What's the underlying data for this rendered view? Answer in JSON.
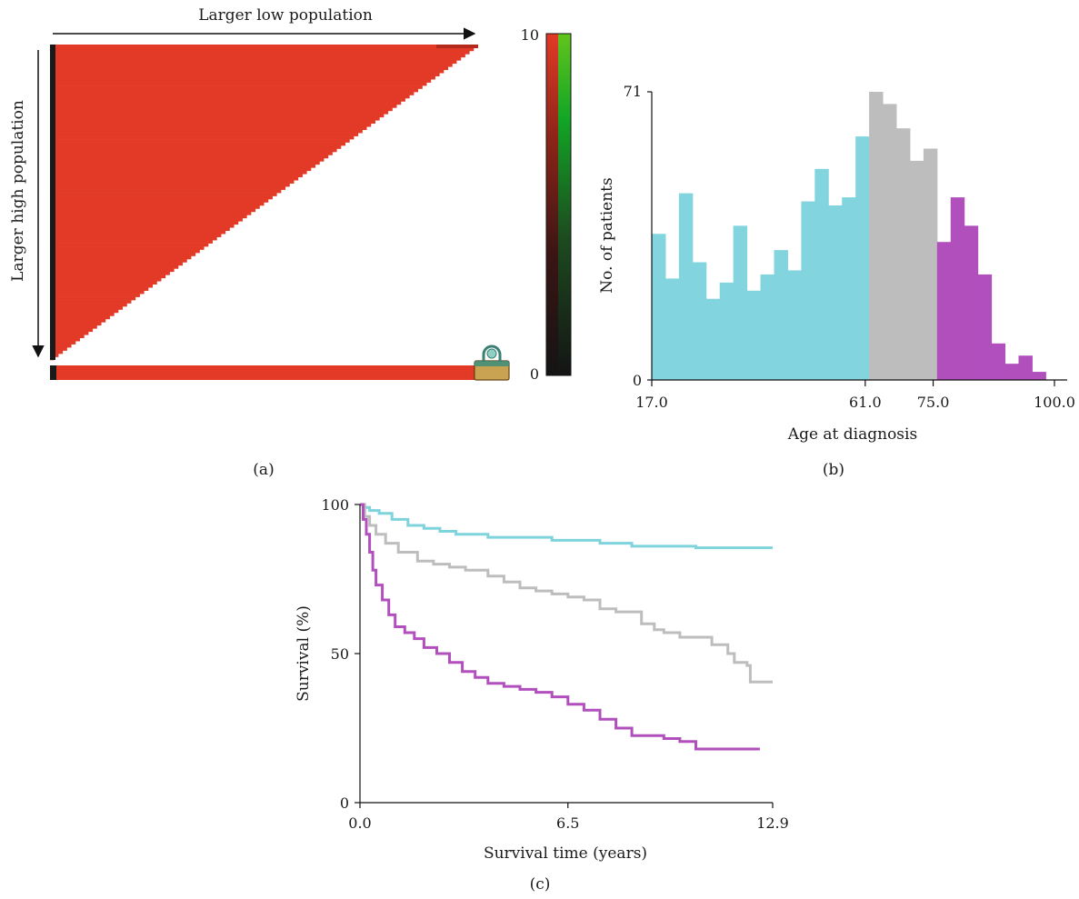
{
  "chart_data": [
    {
      "panel": "(a)",
      "type": "heatmap",
      "xlabel": "Larger low population",
      "ylabel": "Larger high population",
      "colorbar": {
        "min": 0,
        "max": 10,
        "min_label": "0",
        "max_label": "10",
        "colors": [
          "#000000",
          "#e23a26",
          "#1fd82c"
        ]
      },
      "matrix_shape": "upper-left triangle filled red, summary row at bottom",
      "rows": 100,
      "marker": "lock-icon",
      "colors": {
        "cell": "#e23a26",
        "dark_edge": "#1a1a1a"
      }
    },
    {
      "panel": "(b)",
      "type": "bar",
      "xlabel": "Age at diagnosis",
      "ylabel": "No. of patients",
      "ylim": [
        0,
        71
      ],
      "xlim": [
        17.0,
        100.0
      ],
      "y_tick_labels": [
        "0",
        "71"
      ],
      "x_tick_labels": [
        "17.0",
        "61.0",
        "75.0",
        "100.0"
      ],
      "cutoffs": [
        61.0,
        75.0
      ],
      "bin_width": 2.8,
      "values": [
        36,
        25,
        46,
        29,
        20,
        24,
        38,
        22,
        26,
        32,
        27,
        44,
        52,
        43,
        45,
        60,
        71,
        68,
        62,
        54,
        57,
        34,
        45,
        38,
        26,
        9,
        4,
        6,
        2
      ],
      "group_colors": [
        "#82d5df",
        "#bdbdbd",
        "#b14fbd"
      ]
    },
    {
      "panel": "(c)",
      "type": "line",
      "xlabel": "Survival time (years)",
      "ylabel": "Survival (%)",
      "xlim": [
        0,
        12.9
      ],
      "ylim": [
        0,
        100
      ],
      "x_tick_labels": [
        "0.0",
        "6.5",
        "12.9"
      ],
      "y_tick_labels": [
        "0",
        "50",
        "100"
      ],
      "series": [
        {
          "color": "#7fd3dd",
          "points": [
            [
              0,
              100
            ],
            [
              0.1,
              99
            ],
            [
              0.3,
              98
            ],
            [
              0.6,
              97
            ],
            [
              1.0,
              95
            ],
            [
              1.5,
              93
            ],
            [
              2.0,
              92
            ],
            [
              2.5,
              91
            ],
            [
              3.0,
              90
            ],
            [
              3.5,
              90
            ],
            [
              4.0,
              89
            ],
            [
              5.0,
              89
            ],
            [
              6.0,
              88
            ],
            [
              7.0,
              88
            ],
            [
              7.5,
              87
            ],
            [
              8.0,
              87
            ],
            [
              8.5,
              86
            ],
            [
              9.5,
              86
            ],
            [
              10.5,
              85.5
            ],
            [
              12.9,
              85.5
            ]
          ]
        },
        {
          "color": "#bdbdbd",
          "points": [
            [
              0,
              100
            ],
            [
              0.15,
              96
            ],
            [
              0.3,
              93
            ],
            [
              0.5,
              90
            ],
            [
              0.8,
              87
            ],
            [
              1.2,
              84
            ],
            [
              1.8,
              81
            ],
            [
              2.3,
              80
            ],
            [
              2.8,
              79
            ],
            [
              3.3,
              78
            ],
            [
              4.0,
              76
            ],
            [
              4.5,
              74
            ],
            [
              5.0,
              72
            ],
            [
              5.5,
              71
            ],
            [
              6.0,
              70
            ],
            [
              6.5,
              69
            ],
            [
              7.0,
              68
            ],
            [
              7.5,
              65
            ],
            [
              8.0,
              64
            ],
            [
              8.5,
              64
            ],
            [
              8.8,
              60
            ],
            [
              9.2,
              58
            ],
            [
              9.5,
              57
            ],
            [
              10.0,
              55.5
            ],
            [
              10.5,
              55.5
            ],
            [
              11.0,
              53
            ],
            [
              11.5,
              50
            ],
            [
              11.7,
              47
            ],
            [
              12.1,
              46
            ],
            [
              12.2,
              40.5
            ],
            [
              12.9,
              40.5
            ]
          ]
        },
        {
          "color": "#b14fbd",
          "points": [
            [
              0,
              100
            ],
            [
              0.1,
              95
            ],
            [
              0.2,
              90
            ],
            [
              0.3,
              84
            ],
            [
              0.4,
              78
            ],
            [
              0.5,
              73
            ],
            [
              0.7,
              68
            ],
            [
              0.9,
              63
            ],
            [
              1.1,
              59
            ],
            [
              1.4,
              57
            ],
            [
              1.7,
              55
            ],
            [
              2.0,
              52
            ],
            [
              2.4,
              50
            ],
            [
              2.8,
              47
            ],
            [
              3.2,
              44
            ],
            [
              3.6,
              42
            ],
            [
              4.0,
              40
            ],
            [
              4.5,
              39
            ],
            [
              5.0,
              38
            ],
            [
              5.5,
              37
            ],
            [
              6.0,
              35.5
            ],
            [
              6.5,
              33
            ],
            [
              7.0,
              31
            ],
            [
              7.5,
              28
            ],
            [
              8.0,
              25
            ],
            [
              8.5,
              22.5
            ],
            [
              9.0,
              22.5
            ],
            [
              9.5,
              21.5
            ],
            [
              10.0,
              20.5
            ],
            [
              10.5,
              18
            ],
            [
              11.0,
              18
            ],
            [
              12.5,
              18
            ]
          ]
        }
      ]
    }
  ]
}
